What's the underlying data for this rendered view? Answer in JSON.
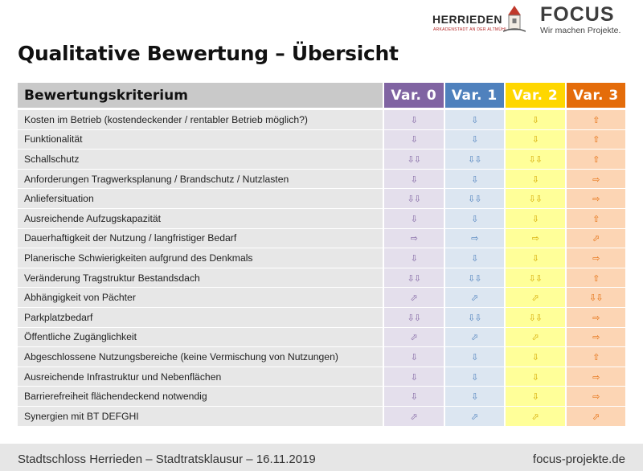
{
  "header": {
    "herrieden_name": "HERRIEDEN",
    "herrieden_sub": "ARKADENSTADT AN DER ALTMÜHL",
    "focus_name": "FOCUS",
    "focus_tagline": "Wir machen Projekte."
  },
  "title": "Qualitative Bewertung – Übersicht",
  "table": {
    "criterion_header": "Bewertungskriterium",
    "variants": [
      {
        "label": "Var. 0",
        "head_color": "#8064a2",
        "cell_color": "#e4dfec"
      },
      {
        "label": "Var. 1",
        "head_color": "#4f81bd",
        "cell_color": "#dce6f1"
      },
      {
        "label": "Var. 2",
        "head_color": "#ffd700",
        "cell_color": "#ffff99"
      },
      {
        "label": "Var. 3",
        "head_color": "#e46c0a",
        "cell_color": "#fcd5b4"
      }
    ],
    "rows": [
      {
        "label": "Kosten im Betrieb (kostendeckender / rentabler Betrieb möglich?)",
        "ratings": [
          "⇩",
          "⇩",
          "⇩",
          "⇧"
        ]
      },
      {
        "label": "Funktionalität",
        "ratings": [
          "⇩",
          "⇩",
          "⇩",
          "⇧"
        ]
      },
      {
        "label": "Schallschutz",
        "ratings": [
          "⇩⇩",
          "⇩⇩",
          "⇩⇩",
          "⇧"
        ]
      },
      {
        "label": "Anforderungen Tragwerksplanung / Brandschutz / Nutzlasten",
        "ratings": [
          "⇩",
          "⇩",
          "⇩",
          "⇨"
        ]
      },
      {
        "label": "Anliefersituation",
        "ratings": [
          "⇩⇩",
          "⇩⇩",
          "⇩⇩",
          "⇨"
        ]
      },
      {
        "label": "Ausreichende Aufzugskapazität",
        "ratings": [
          "⇩",
          "⇩",
          "⇩",
          "⇧"
        ]
      },
      {
        "label": "Dauerhaftigkeit der Nutzung / langfristiger Bedarf",
        "ratings": [
          "⇨",
          "⇨",
          "⇨",
          "⬀"
        ]
      },
      {
        "label": "Planerische Schwierigkeiten aufgrund des Denkmals",
        "ratings": [
          "⇩",
          "⇩",
          "⇩",
          "⇨"
        ]
      },
      {
        "label": "Veränderung Tragstruktur Bestandsdach",
        "ratings": [
          "⇩⇩",
          "⇩⇩",
          "⇩⇩",
          "⇧"
        ]
      },
      {
        "label": "Abhängigkeit von Pächter",
        "ratings": [
          "⬀",
          "⬀",
          "⬀",
          "⇩⇩"
        ]
      },
      {
        "label": "Parkplatzbedarf",
        "ratings": [
          "⇩⇩",
          "⇩⇩",
          "⇩⇩",
          "⇨"
        ]
      },
      {
        "label": "Öffentliche Zugänglichkeit",
        "ratings": [
          "⬀",
          "⬀",
          "⬀",
          "⇨"
        ]
      },
      {
        "label": "Abgeschlossene Nutzungsbereiche (keine Vermischung von Nutzungen)",
        "ratings": [
          "⇩",
          "⇩",
          "⇩",
          "⇧"
        ]
      },
      {
        "label": "Ausreichende Infrastruktur und Nebenflächen",
        "ratings": [
          "⇩",
          "⇩",
          "⇩",
          "⇨"
        ]
      },
      {
        "label": "Barrierefreiheit flächendeckend notwendig",
        "ratings": [
          "⇩",
          "⇩",
          "⇩",
          "⇨"
        ]
      },
      {
        "label": "Synergien mit BT DEFGHI",
        "ratings": [
          "⬀",
          "⬀",
          "⬀",
          "⬀"
        ]
      }
    ]
  },
  "footer": {
    "left": "Stadtschloss Herrieden – Stadtratsklausur – 16.11.2019",
    "right": "focus-projekte.de"
  }
}
